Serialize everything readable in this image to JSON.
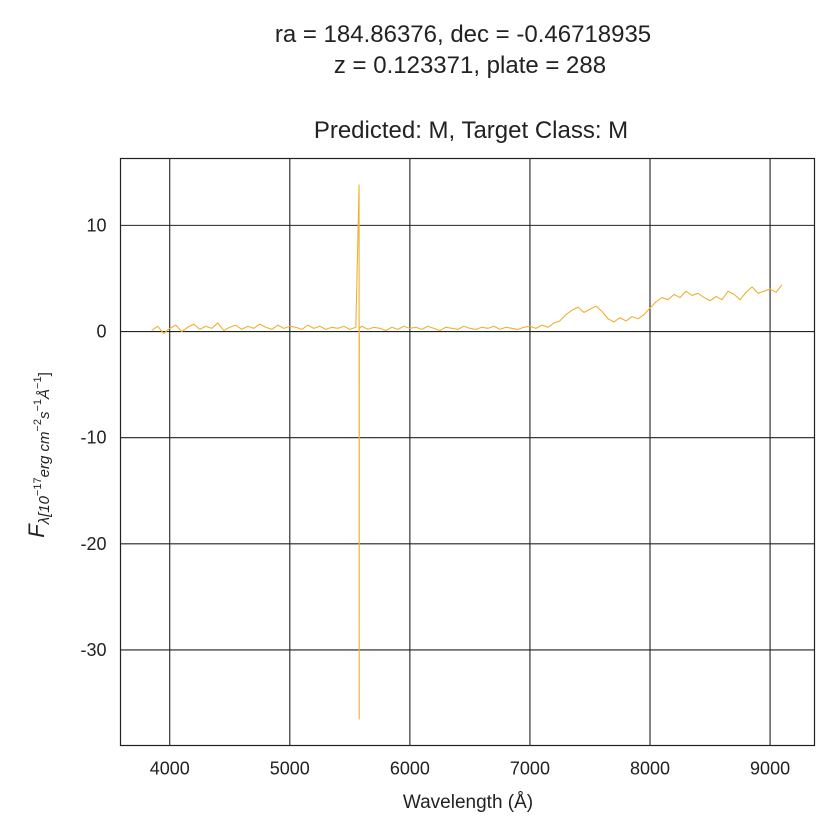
{
  "chart_data": {
    "type": "line",
    "title_lines": [
      "ra = 184.86376, dec = -0.46718935",
      "z = 0.123371, plate = 288"
    ],
    "subtitle": "Predicted: M, Target Class: M",
    "xlabel": "Wavelength (Å)",
    "ylabel": {
      "main": "F",
      "sub": "λ[10",
      "sup1": "−17",
      "mid1": "erg cm",
      "sup2": "−2",
      "mid2": "s",
      "sup3": "−1",
      "mid3": "Å",
      "sup4": "−1",
      "end": "]"
    },
    "xlim": [
      3590,
      9370
    ],
    "ylim": [
      -39,
      16.3
    ],
    "grid": true,
    "line_color": "#f0b030",
    "xticks": [
      {
        "value": 4000,
        "label": "4000"
      },
      {
        "value": 5000,
        "label": "5000"
      },
      {
        "value": 6000,
        "label": "6000"
      },
      {
        "value": 7000,
        "label": "7000"
      },
      {
        "value": 8000,
        "label": "8000"
      },
      {
        "value": 9000,
        "label": "9000"
      }
    ],
    "yticks": [
      {
        "value": 10,
        "label": "10"
      },
      {
        "value": 0,
        "label": "0"
      },
      {
        "value": -10,
        "label": "-10"
      },
      {
        "value": -20,
        "label": "-20"
      },
      {
        "value": -30,
        "label": "-30"
      }
    ],
    "series": [
      {
        "x": [
          3850,
          3900,
          3950,
          4000,
          4050,
          4100,
          4150,
          4200,
          4250,
          4300,
          4350,
          4400,
          4450,
          4500,
          4550,
          4600,
          4650,
          4700,
          4750,
          4800,
          4850,
          4900,
          4950,
          5000,
          5050,
          5100,
          5150,
          5200,
          5250,
          5300,
          5350,
          5400,
          5450,
          5500,
          5550,
          5577,
          5578,
          5579,
          5600,
          5650,
          5700,
          5750,
          5800,
          5850,
          5900,
          5950,
          6000,
          6050,
          6100,
          6150,
          6200,
          6250,
          6300,
          6350,
          6400,
          6450,
          6500,
          6550,
          6600,
          6650,
          6700,
          6750,
          6800,
          6850,
          6900,
          6950,
          7000,
          7050,
          7100,
          7150,
          7200,
          7250,
          7300,
          7350,
          7400,
          7450,
          7500,
          7550,
          7600,
          7650,
          7700,
          7750,
          7800,
          7850,
          7900,
          7950,
          8000,
          8050,
          8100,
          8150,
          8200,
          8250,
          8300,
          8350,
          8400,
          8450,
          8500,
          8550,
          8600,
          8650,
          8700,
          8750,
          8800,
          8850,
          8900,
          8950,
          9000,
          9050,
          9100
        ],
        "y": [
          0.1,
          0.5,
          -0.2,
          0.3,
          0.6,
          0.0,
          0.4,
          0.7,
          0.2,
          0.5,
          0.3,
          0.8,
          0.1,
          0.4,
          0.6,
          0.2,
          0.5,
          0.3,
          0.7,
          0.4,
          0.2,
          0.6,
          0.3,
          0.5,
          0.4,
          0.2,
          0.6,
          0.3,
          0.5,
          0.2,
          0.4,
          0.3,
          0.5,
          0.2,
          0.4,
          13.8,
          -36.5,
          0.3,
          0.5,
          0.2,
          0.4,
          0.3,
          0.1,
          0.4,
          0.2,
          0.5,
          0.3,
          0.4,
          0.2,
          0.5,
          0.3,
          0.1,
          0.4,
          0.3,
          0.2,
          0.5,
          0.3,
          0.2,
          0.4,
          0.3,
          0.5,
          0.2,
          0.4,
          0.3,
          0.2,
          0.4,
          0.5,
          0.3,
          0.6,
          0.4,
          0.8,
          1.0,
          1.6,
          2.0,
          2.3,
          1.8,
          2.1,
          2.4,
          1.9,
          1.2,
          0.9,
          1.3,
          1.0,
          1.4,
          1.2,
          1.6,
          2.2,
          2.8,
          3.2,
          3.0,
          3.5,
          3.2,
          3.8,
          3.4,
          3.6,
          3.2,
          2.9,
          3.3,
          3.0,
          3.8,
          3.5,
          3.0,
          3.7,
          4.2,
          3.6,
          3.8,
          4.0,
          3.7,
          4.4
        ]
      }
    ]
  }
}
